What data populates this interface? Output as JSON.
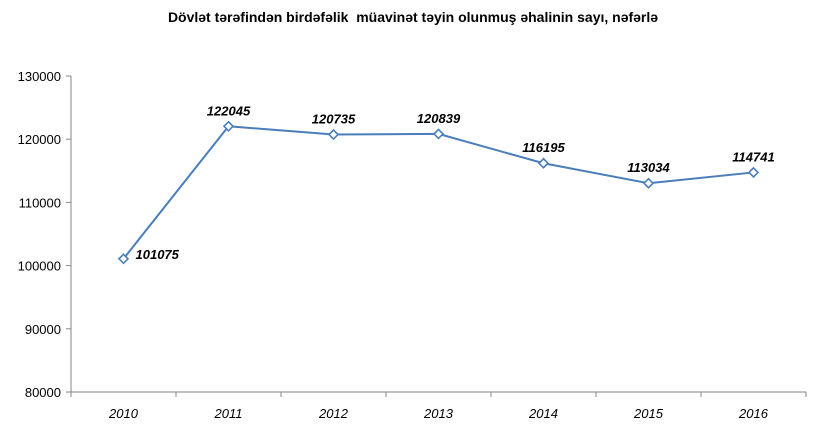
{
  "chart_data": {
    "type": "line",
    "title": "Dövlət tərəfindən birdəfəlik  müavinət təyin olunmuş əhalinin sayı, nəfərlə",
    "xlabel": "",
    "ylabel": "",
    "categories": [
      "2010",
      "2011",
      "2012",
      "2013",
      "2014",
      "2015",
      "2016"
    ],
    "series": [
      {
        "values": [
          101075,
          122045,
          120735,
          120839,
          116195,
          113034,
          114741
        ]
      }
    ],
    "data_labels": [
      "101075",
      "122045",
      "120735",
      "120839",
      "116195",
      "113034",
      "114741"
    ],
    "y_ticks": [
      "80000",
      "90000",
      "100000",
      "110000",
      "120000",
      "130000"
    ],
    "ylim": [
      80000,
      130000
    ],
    "grid": false,
    "legend": "none",
    "line_color": "#4a7ebb",
    "marker": "diamond-open"
  }
}
